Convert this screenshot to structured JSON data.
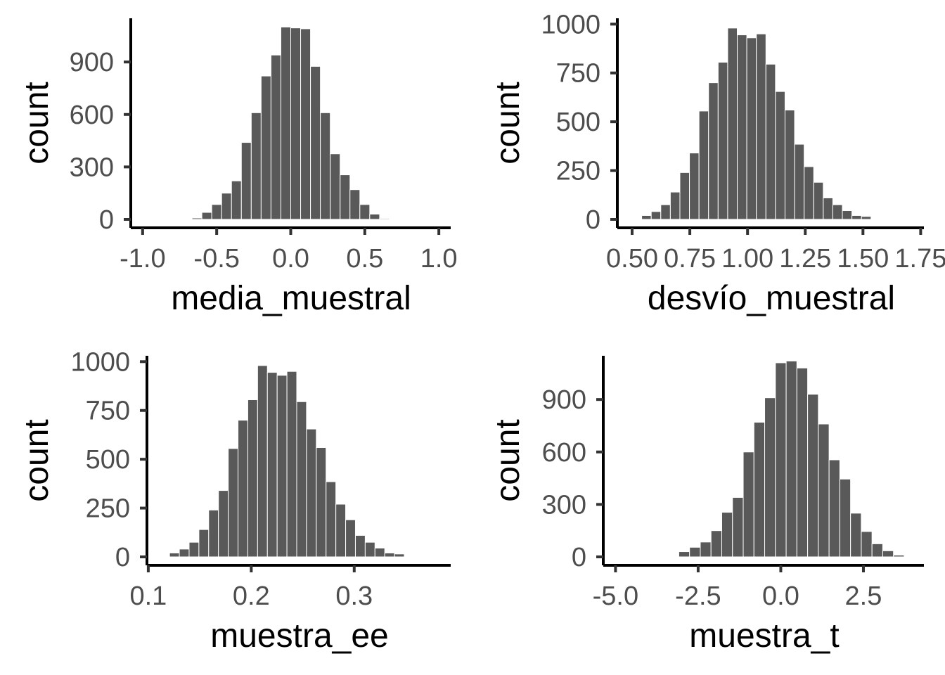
{
  "colors": {
    "bar_fill": "#595959",
    "bar_outline": "#ffffff",
    "axis": "#000000",
    "tick_text": "#4d4d4d"
  },
  "chart_data": [
    {
      "type": "bar",
      "name": "media",
      "xlabel": "media_muestral",
      "ylabel": "count",
      "xlim": [
        -1.08,
        1.08
      ],
      "ylim": [
        0,
        1150
      ],
      "xticks": [
        -1.0,
        -0.5,
        0.0,
        0.5,
        1.0
      ],
      "xtick_labels": [
        "-1.0",
        "-0.5",
        "0.0",
        "0.5",
        "1.0"
      ],
      "yticks": [
        0,
        300,
        600,
        900
      ],
      "ytick_labels": [
        "0",
        "300",
        "600",
        "900"
      ],
      "bin_width": 0.0667,
      "bins": [
        {
          "x": -0.6333,
          "count": 8
        },
        {
          "x": -0.5667,
          "count": 40
        },
        {
          "x": -0.5,
          "count": 85
        },
        {
          "x": -0.4333,
          "count": 150
        },
        {
          "x": -0.3667,
          "count": 220
        },
        {
          "x": -0.3,
          "count": 440
        },
        {
          "x": -0.2333,
          "count": 610
        },
        {
          "x": -0.1667,
          "count": 820
        },
        {
          "x": -0.1,
          "count": 940
        },
        {
          "x": -0.0333,
          "count": 1100
        },
        {
          "x": 0.0333,
          "count": 1095
        },
        {
          "x": 0.1,
          "count": 1090
        },
        {
          "x": 0.1667,
          "count": 875
        },
        {
          "x": 0.2333,
          "count": 610
        },
        {
          "x": 0.3,
          "count": 375
        },
        {
          "x": 0.3667,
          "count": 255
        },
        {
          "x": 0.4333,
          "count": 170
        },
        {
          "x": 0.5,
          "count": 85
        },
        {
          "x": 0.5667,
          "count": 30
        },
        {
          "x": 0.6333,
          "count": 5
        }
      ]
    },
    {
      "type": "bar",
      "name": "desvio",
      "xlabel": "desvío_muestral",
      "ylabel": "count",
      "xlim": [
        0.436,
        1.764
      ],
      "ylim": [
        0,
        1030
      ],
      "xticks": [
        0.5,
        0.75,
        1.0,
        1.25,
        1.5,
        1.75
      ],
      "xtick_labels": [
        "0.50",
        "0.75",
        "1.00",
        "1.25",
        "1.50",
        "1.75"
      ],
      "yticks": [
        0,
        250,
        500,
        750,
        1000
      ],
      "ytick_labels": [
        "0",
        "250",
        "500",
        "750",
        "1000"
      ],
      "bin_width": 0.0414,
      "bins": [
        {
          "x": 0.5621,
          "count": 20
        },
        {
          "x": 0.6035,
          "count": 40
        },
        {
          "x": 0.6449,
          "count": 75
        },
        {
          "x": 0.6863,
          "count": 140
        },
        {
          "x": 0.7277,
          "count": 240
        },
        {
          "x": 0.7691,
          "count": 340
        },
        {
          "x": 0.8105,
          "count": 555
        },
        {
          "x": 0.8519,
          "count": 700
        },
        {
          "x": 0.8933,
          "count": 805
        },
        {
          "x": 0.9347,
          "count": 980
        },
        {
          "x": 0.9761,
          "count": 945
        },
        {
          "x": 1.0175,
          "count": 930
        },
        {
          "x": 1.0589,
          "count": 950
        },
        {
          "x": 1.1003,
          "count": 795
        },
        {
          "x": 1.1417,
          "count": 655
        },
        {
          "x": 1.1831,
          "count": 560
        },
        {
          "x": 1.2245,
          "count": 385
        },
        {
          "x": 1.2659,
          "count": 270
        },
        {
          "x": 1.3073,
          "count": 190
        },
        {
          "x": 1.3487,
          "count": 110
        },
        {
          "x": 1.3901,
          "count": 75
        },
        {
          "x": 1.4315,
          "count": 45
        },
        {
          "x": 1.4729,
          "count": 20
        },
        {
          "x": 1.5143,
          "count": 15
        }
      ]
    },
    {
      "type": "bar",
      "name": "ee",
      "xlabel": "muestra_ee",
      "ylabel": "count",
      "xlim": [
        0.0987,
        0.3937
      ],
      "ylim": [
        0,
        1030
      ],
      "xticks": [
        0.1,
        0.2,
        0.3
      ],
      "xtick_labels": [
        "0.1",
        "0.2",
        "0.3"
      ],
      "yticks": [
        0,
        250,
        500,
        750,
        1000
      ],
      "ytick_labels": [
        "0",
        "250",
        "500",
        "750",
        "1000"
      ],
      "bin_width": 0.0095,
      "bins": [
        {
          "x": 0.1254,
          "count": 20
        },
        {
          "x": 0.1349,
          "count": 40
        },
        {
          "x": 0.1444,
          "count": 75
        },
        {
          "x": 0.1539,
          "count": 140
        },
        {
          "x": 0.1634,
          "count": 240
        },
        {
          "x": 0.1729,
          "count": 340
        },
        {
          "x": 0.1824,
          "count": 555
        },
        {
          "x": 0.1919,
          "count": 700
        },
        {
          "x": 0.2014,
          "count": 805
        },
        {
          "x": 0.2109,
          "count": 980
        },
        {
          "x": 0.2204,
          "count": 945
        },
        {
          "x": 0.2299,
          "count": 930
        },
        {
          "x": 0.2394,
          "count": 950
        },
        {
          "x": 0.2489,
          "count": 795
        },
        {
          "x": 0.2584,
          "count": 655
        },
        {
          "x": 0.2679,
          "count": 560
        },
        {
          "x": 0.2774,
          "count": 385
        },
        {
          "x": 0.2869,
          "count": 270
        },
        {
          "x": 0.2964,
          "count": 190
        },
        {
          "x": 0.3059,
          "count": 110
        },
        {
          "x": 0.3154,
          "count": 75
        },
        {
          "x": 0.3249,
          "count": 45
        },
        {
          "x": 0.3344,
          "count": 20
        },
        {
          "x": 0.3439,
          "count": 15
        }
      ]
    },
    {
      "type": "bar",
      "name": "t",
      "xlabel": "muestra_t",
      "ylabel": "count",
      "xlim": [
        -5.37,
        4.33
      ],
      "ylim": [
        0,
        1150
      ],
      "xticks": [
        -5.0,
        -2.5,
        0.0,
        2.5
      ],
      "xtick_labels": [
        "-5.0",
        "-2.5",
        "0.0",
        "2.5"
      ],
      "yticks": [
        0,
        300,
        600,
        900
      ],
      "ytick_labels": [
        "0",
        "300",
        "600",
        "900"
      ],
      "bin_width": 0.3247,
      "bins": [
        {
          "x": -2.9221,
          "count": 30
        },
        {
          "x": -2.5974,
          "count": 55
        },
        {
          "x": -2.2727,
          "count": 85
        },
        {
          "x": -1.9481,
          "count": 150
        },
        {
          "x": -1.6234,
          "count": 255
        },
        {
          "x": -1.2987,
          "count": 340
        },
        {
          "x": -0.974,
          "count": 600
        },
        {
          "x": -0.6494,
          "count": 770
        },
        {
          "x": -0.3247,
          "count": 910
        },
        {
          "x": 0.0,
          "count": 1110
        },
        {
          "x": 0.3247,
          "count": 1120
        },
        {
          "x": 0.6494,
          "count": 1080
        },
        {
          "x": 0.974,
          "count": 930
        },
        {
          "x": 1.2987,
          "count": 760
        },
        {
          "x": 1.6234,
          "count": 555
        },
        {
          "x": 1.9481,
          "count": 445
        },
        {
          "x": 2.2727,
          "count": 250
        },
        {
          "x": 2.5974,
          "count": 145
        },
        {
          "x": 2.9221,
          "count": 75
        },
        {
          "x": 3.2468,
          "count": 35
        },
        {
          "x": 3.5714,
          "count": 10
        }
      ]
    }
  ]
}
